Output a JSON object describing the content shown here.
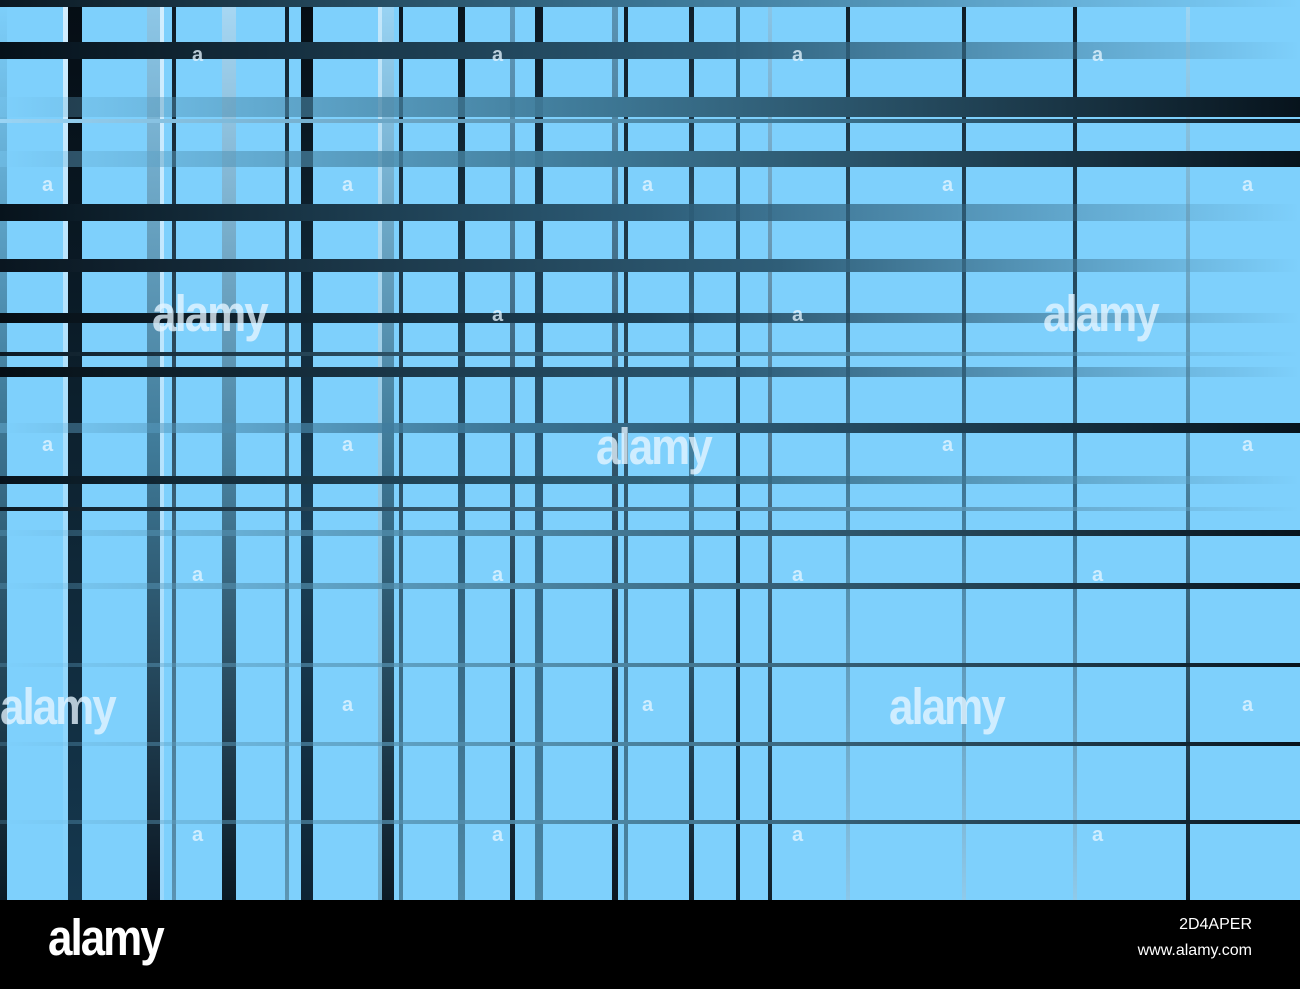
{
  "watermark": {
    "text": "alamy",
    "mark": "a"
  },
  "footer": {
    "logo": "alamy",
    "image_id": "2D4APER",
    "site": "www.alamy.com"
  },
  "colors": {
    "background": "#7ed0fc",
    "line_dark": "#07131c",
    "line_mid": "#3c6f8c",
    "footer": "#000000",
    "footer_text": "#ffffff"
  }
}
